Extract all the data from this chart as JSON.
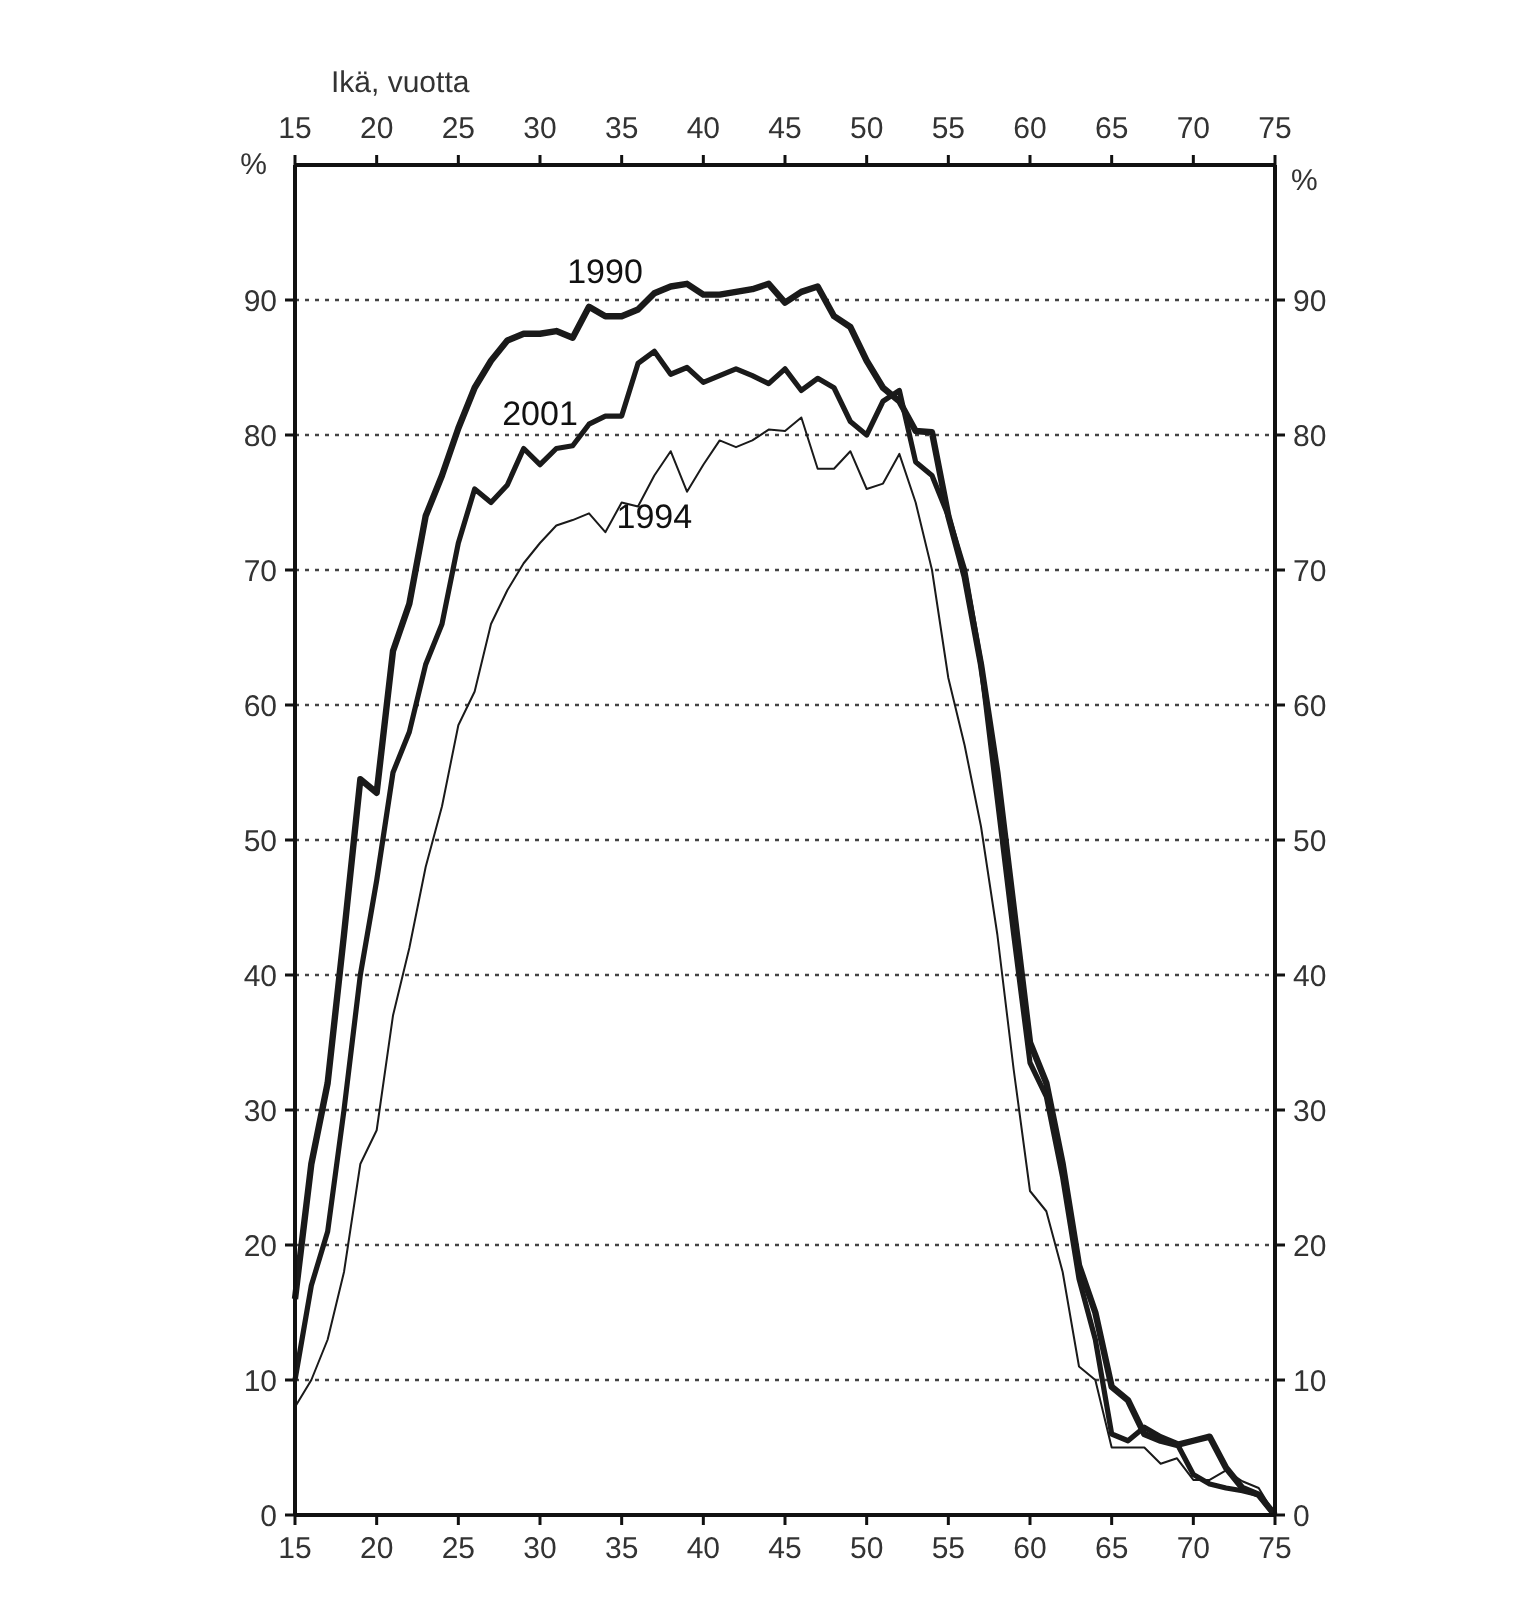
{
  "chart_data": {
    "type": "line",
    "xlabel": "Ikä, vuotta",
    "ylabel": "%",
    "y2label": "%",
    "x": [
      15,
      16,
      17,
      18,
      19,
      20,
      21,
      22,
      23,
      24,
      25,
      26,
      27,
      28,
      29,
      30,
      31,
      32,
      33,
      34,
      35,
      36,
      37,
      38,
      39,
      40,
      41,
      42,
      43,
      44,
      45,
      46,
      47,
      48,
      49,
      50,
      51,
      52,
      53,
      54,
      55,
      56,
      57,
      58,
      59,
      60,
      61,
      62,
      63,
      64,
      65,
      66,
      67,
      68,
      69,
      70,
      71,
      72,
      73,
      74,
      75
    ],
    "series": [
      {
        "name": "1990",
        "color": "#1a1a1a",
        "values": [
          16,
          26,
          32,
          43,
          54.5,
          53.5,
          64,
          67.5,
          74,
          77,
          80.5,
          83.5,
          85.5,
          87,
          87.5,
          87.5,
          87.7,
          87.2,
          89.5,
          88.8,
          88.8,
          89.3,
          90.5,
          91,
          91.2,
          90.4,
          90.4,
          90.6,
          90.8,
          91.2,
          89.8,
          90.6,
          91,
          88.8,
          88,
          85.5,
          83.5,
          82.5,
          80.3,
          80.2,
          74,
          69.5,
          63,
          55,
          45,
          35,
          32,
          26,
          18.5,
          15,
          9.5,
          8.5,
          6,
          5.5,
          5.2,
          5.5,
          5.8,
          3.5,
          2,
          1.5,
          0
        ]
      },
      {
        "name": "2001",
        "color": "#1a1a1a",
        "values": [
          10,
          17,
          21,
          30,
          40,
          47,
          55,
          58,
          63,
          66,
          72,
          76,
          75,
          76.3,
          79,
          77.8,
          79,
          79.2,
          80.8,
          81.4,
          81.4,
          85.3,
          86.2,
          84.5,
          85,
          83.9,
          84.4,
          84.9,
          84.4,
          83.8,
          84.9,
          83.3,
          84.2,
          83.5,
          81,
          80,
          82.5,
          83.3,
          78,
          77,
          74,
          70,
          63,
          53,
          43,
          33.5,
          31,
          25,
          17.5,
          13,
          6,
          5.5,
          6.5,
          5.8,
          5.3,
          3,
          2.3,
          2,
          1.8,
          1.5,
          0
        ]
      },
      {
        "name": "1994",
        "color": "#1a1a1a",
        "values": [
          8,
          10,
          13,
          18,
          26,
          28.5,
          37,
          42,
          48,
          52.5,
          58.5,
          61,
          66,
          68.5,
          70.5,
          72,
          73.3,
          73.7,
          74.2,
          72.8,
          75,
          74.7,
          77,
          78.8,
          75.8,
          77.8,
          79.6,
          79.1,
          79.6,
          80.4,
          80.3,
          81.3,
          77.5,
          77.5,
          78.8,
          76,
          76.4,
          78.6,
          75,
          70,
          62,
          57,
          51,
          43,
          33,
          24,
          22.5,
          18,
          11,
          10,
          5,
          5,
          5,
          3.8,
          4.2,
          2.6,
          2.6,
          3.3,
          2.5,
          2,
          0
        ]
      }
    ],
    "xlim": [
      15,
      75
    ],
    "xticks": [
      15,
      20,
      25,
      30,
      35,
      40,
      45,
      50,
      55,
      60,
      65,
      70,
      75
    ],
    "x2lim": [
      15,
      75
    ],
    "x2ticks": [
      15,
      20,
      25,
      30,
      35,
      40,
      45,
      50,
      55,
      60,
      65,
      70,
      75
    ],
    "ylim": [
      0,
      100
    ],
    "yticks": [
      0,
      10,
      20,
      30,
      40,
      50,
      60,
      70,
      80,
      90
    ],
    "y2lim": [
      0,
      100
    ],
    "y2ticks": [
      0,
      10,
      20,
      30,
      40,
      50,
      60,
      70,
      80,
      90
    ],
    "grid": "y",
    "marker": "none",
    "line_style": "solid"
  }
}
